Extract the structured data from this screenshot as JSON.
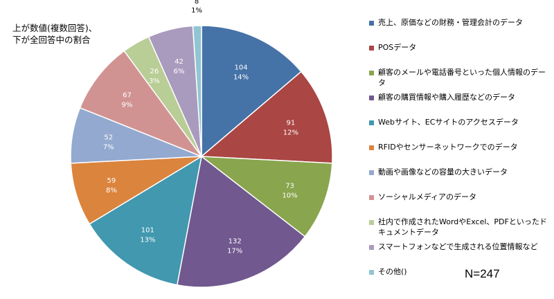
{
  "note": {
    "line1": "上が数値(複数回答)、",
    "line2": "下が全回答中の割合"
  },
  "total_label": "N=247",
  "chart_data": {
    "type": "pie",
    "title": "",
    "categories": [
      "売上、原価などの財務・管理会計のデータ",
      "POSデータ",
      "顧客のメールや電話番号といった個人情報のデータ",
      "顧客の購買情報や購入履歴などのデータ",
      "Webサイト、ECサイトのアクセスデータ",
      "RFIDやセンサーネットワークでのデータ",
      "動画や画像などの容量の大きいデータ",
      "ソーシャルメディアのデータ",
      "社内で作成されたWordやExcel、PDFといったドキュメントデータ",
      "スマートフォンなどで生成される位置情報など",
      "その他()"
    ],
    "values": [
      104,
      91,
      73,
      132,
      101,
      59,
      52,
      67,
      26,
      42,
      8
    ],
    "percents": [
      "14%",
      "12%",
      "10%",
      "17%",
      "13%",
      "8%",
      "7%",
      "9%",
      "3%",
      "6%",
      "1%"
    ],
    "value_labels": [
      "104",
      "91",
      "73",
      "132",
      "101",
      "59",
      "52",
      "67",
      "26",
      "42",
      "8"
    ],
    "colors": [
      "#4572A7",
      "#AA4643",
      "#89A54E",
      "#71588F",
      "#4198AF",
      "#DB843D",
      "#93A9CF",
      "#D19392",
      "#B9CD96",
      "#A99BBD",
      "#92C5D3"
    ],
    "legend_placement": "right"
  }
}
